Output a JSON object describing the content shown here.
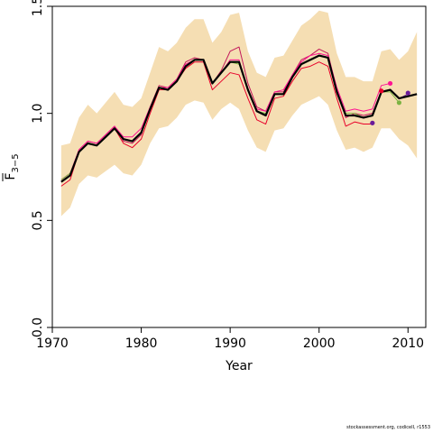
{
  "chart_data": {
    "type": "line",
    "title": "",
    "xlabel": "Year",
    "ylabel": "F3-5",
    "ylabel_parts": {
      "main": "F",
      "sub": "3−5"
    },
    "xlim": [
      1970,
      2012
    ],
    "ylim": [
      0,
      1.5
    ],
    "xticks": [
      1970,
      1980,
      1990,
      2000,
      2010
    ],
    "xtick_labels": [
      "1970",
      "1980",
      "1990",
      "2000",
      "2010"
    ],
    "yticks": [
      0,
      0.5,
      1.0,
      1.5
    ],
    "ytick_labels": [
      "0.0",
      "0.5",
      "1.0",
      "1.5"
    ],
    "grid": false,
    "legend": "none",
    "band_color": "#f5deb3",
    "band": {
      "x": [
        1971,
        1972,
        1973,
        1974,
        1975,
        1976,
        1977,
        1978,
        1979,
        1980,
        1981,
        1982,
        1983,
        1984,
        1985,
        1986,
        1987,
        1988,
        1989,
        1990,
        1991,
        1992,
        1993,
        1994,
        1995,
        1996,
        1997,
        1998,
        1999,
        2000,
        2001,
        2002,
        2003,
        2004,
        2005,
        2006,
        2007,
        2008,
        2009,
        2010,
        2011
      ],
      "lower": [
        0.52,
        0.56,
        0.67,
        0.71,
        0.7,
        0.73,
        0.76,
        0.72,
        0.71,
        0.76,
        0.86,
        0.93,
        0.94,
        0.98,
        1.04,
        1.06,
        1.05,
        0.97,
        1.02,
        1.05,
        1.02,
        0.92,
        0.84,
        0.82,
        0.92,
        0.93,
        0.99,
        1.04,
        1.06,
        1.08,
        1.04,
        0.92,
        0.83,
        0.84,
        0.82,
        0.84,
        0.93,
        0.93,
        0.88,
        0.85,
        0.79
      ],
      "upper": [
        0.85,
        0.86,
        0.98,
        1.04,
        1.0,
        1.05,
        1.1,
        1.04,
        1.03,
        1.07,
        1.19,
        1.31,
        1.29,
        1.33,
        1.4,
        1.44,
        1.44,
        1.33,
        1.38,
        1.46,
        1.47,
        1.29,
        1.19,
        1.17,
        1.26,
        1.27,
        1.34,
        1.41,
        1.44,
        1.48,
        1.47,
        1.28,
        1.17,
        1.17,
        1.15,
        1.15,
        1.29,
        1.3,
        1.25,
        1.29,
        1.38
      ]
    },
    "series": [
      {
        "color": "#000000",
        "width": 2.2,
        "x": [
          1971,
          1972,
          1973,
          1974,
          1975,
          1976,
          1977,
          1978,
          1979,
          1980,
          1981,
          1982,
          1983,
          1984,
          1985,
          1986,
          1987,
          1988,
          1989,
          1990,
          1991,
          1992,
          1993,
          1994,
          1995,
          1996,
          1997,
          1998,
          1999,
          2000,
          2001,
          2002,
          2003,
          2004,
          2005,
          2006,
          2007,
          2008,
          2009,
          2010,
          2011
        ],
        "values": [
          0.68,
          0.71,
          0.82,
          0.86,
          0.85,
          0.89,
          0.93,
          0.88,
          0.87,
          0.91,
          1.02,
          1.12,
          1.11,
          1.15,
          1.22,
          1.25,
          1.25,
          1.14,
          1.19,
          1.24,
          1.24,
          1.11,
          1.01,
          0.99,
          1.09,
          1.09,
          1.17,
          1.23,
          1.25,
          1.27,
          1.26,
          1.1,
          0.99,
          0.99,
          0.98,
          0.99,
          1.1,
          1.11,
          1.07,
          1.08,
          1.09
        ]
      },
      {
        "color": "#e8002a",
        "width": 1,
        "x": [
          1971,
          1972,
          1973,
          1974,
          1975,
          1976,
          1977,
          1978,
          1979,
          1980,
          1981,
          1982,
          1983,
          1984,
          1985,
          1986,
          1987,
          1988,
          1989,
          1990,
          1991,
          1992,
          1993,
          1994,
          1995,
          1996,
          1997,
          1998,
          1999,
          2000,
          2001,
          2002,
          2003,
          2004,
          2005,
          2006
        ],
        "values": [
          0.66,
          0.69,
          0.82,
          0.86,
          0.85,
          0.89,
          0.93,
          0.86,
          0.84,
          0.88,
          1.0,
          1.11,
          1.11,
          1.15,
          1.21,
          1.24,
          1.24,
          1.11,
          1.15,
          1.19,
          1.18,
          1.07,
          0.97,
          0.95,
          1.07,
          1.08,
          1.15,
          1.21,
          1.22,
          1.24,
          1.22,
          1.07,
          0.94,
          0.96,
          0.95,
          0.95
        ]
      },
      {
        "color": "#c2185b",
        "width": 1,
        "x": [
          1971,
          1972,
          1973,
          1974,
          1975,
          1976,
          1977,
          1978,
          1979,
          1980,
          1981,
          1982,
          1983,
          1984,
          1985,
          1986,
          1987,
          1988,
          1989,
          1990,
          1991,
          1992,
          1993,
          1994,
          1995,
          1996,
          1997,
          1998,
          1999,
          2000,
          2001,
          2002,
          2003,
          2004,
          2005,
          2006,
          2007
        ],
        "values": [
          0.68,
          0.71,
          0.83,
          0.87,
          0.86,
          0.9,
          0.94,
          0.87,
          0.86,
          0.9,
          1.03,
          1.13,
          1.12,
          1.16,
          1.24,
          1.26,
          1.25,
          1.14,
          1.2,
          1.29,
          1.31,
          1.14,
          1.03,
          1.01,
          1.1,
          1.1,
          1.18,
          1.25,
          1.27,
          1.3,
          1.28,
          1.11,
          0.98,
          1.0,
          0.99,
          1.0,
          1.1
        ]
      },
      {
        "color": "#ff1493",
        "width": 1,
        "x": [
          1971,
          1972,
          1973,
          1974,
          1975,
          1976,
          1977,
          1978,
          1979,
          1980,
          1981,
          1982,
          1983,
          1984,
          1985,
          1986,
          1987,
          1988,
          1989,
          1990,
          1991,
          1992,
          1993,
          1994,
          1995,
          1996,
          1997,
          1998,
          1999,
          2000,
          2001,
          2002,
          2003,
          2004,
          2005,
          2006,
          2007,
          2008
        ],
        "values": [
          0.69,
          0.72,
          0.83,
          0.87,
          0.86,
          0.9,
          0.94,
          0.89,
          0.89,
          0.93,
          1.03,
          1.12,
          1.12,
          1.16,
          1.23,
          1.25,
          1.25,
          1.14,
          1.19,
          1.25,
          1.25,
          1.11,
          1.02,
          1.01,
          1.1,
          1.11,
          1.18,
          1.24,
          1.27,
          1.28,
          1.27,
          1.12,
          1.01,
          1.02,
          1.01,
          1.02,
          1.13,
          1.14
        ]
      },
      {
        "color": "#7cb342",
        "width": 1,
        "x": [
          1971,
          1972,
          1973,
          1974,
          1975,
          1976,
          1977,
          1978,
          1979,
          1980,
          1981,
          1982,
          1983,
          1984,
          1985,
          1986,
          1987,
          1988,
          1989,
          1990,
          1991,
          1992,
          1993,
          1994,
          1995,
          1996,
          1997,
          1998,
          1999,
          2000,
          2001,
          2002,
          2003,
          2004,
          2005,
          2006,
          2007,
          2008,
          2009
        ],
        "values": [
          0.69,
          0.72,
          0.82,
          0.86,
          0.85,
          0.89,
          0.93,
          0.88,
          0.87,
          0.91,
          1.02,
          1.12,
          1.11,
          1.15,
          1.22,
          1.25,
          1.25,
          1.14,
          1.19,
          1.24,
          1.23,
          1.11,
          1.01,
          1.0,
          1.09,
          1.09,
          1.17,
          1.23,
          1.25,
          1.27,
          1.26,
          1.1,
          1.0,
          1.0,
          0.98,
          0.99,
          1.1,
          1.1,
          1.05
        ]
      },
      {
        "color": "#6a1b9a",
        "width": 1,
        "x": [
          1971,
          1972,
          1973,
          1974,
          1975,
          1976,
          1977,
          1978,
          1979,
          1980,
          1981,
          1982,
          1983,
          1984,
          1985,
          1986,
          1987,
          1988,
          1989,
          1990,
          1991,
          1992,
          1993,
          1994,
          1995,
          1996,
          1997,
          1998,
          1999,
          2000,
          2001,
          2002,
          2003,
          2004,
          2005,
          2006,
          2007,
          2008,
          2009,
          2010
        ],
        "values": [
          0.68,
          0.71,
          0.82,
          0.86,
          0.85,
          0.89,
          0.93,
          0.88,
          0.87,
          0.91,
          1.02,
          1.12,
          1.11,
          1.15,
          1.22,
          1.25,
          1.25,
          1.14,
          1.19,
          1.24,
          1.24,
          1.11,
          1.01,
          0.99,
          1.09,
          1.09,
          1.17,
          1.23,
          1.25,
          1.27,
          1.26,
          1.1,
          0.99,
          0.99,
          0.98,
          0.99,
          1.1,
          1.11,
          1.07,
          1.09
        ]
      }
    ],
    "points": [
      {
        "x": 2006,
        "y": 0.955,
        "color": "#6a1b9a"
      },
      {
        "x": 2007,
        "y": 1.105,
        "color": "#e8002a"
      },
      {
        "x": 2008,
        "y": 1.14,
        "color": "#ff1493"
      },
      {
        "x": 2009,
        "y": 1.05,
        "color": "#7cb342"
      },
      {
        "x": 2010,
        "y": 1.095,
        "color": "#6a1b9a"
      }
    ]
  },
  "footer": {
    "credit": "stockassessment.org, codiceII, r1553"
  }
}
